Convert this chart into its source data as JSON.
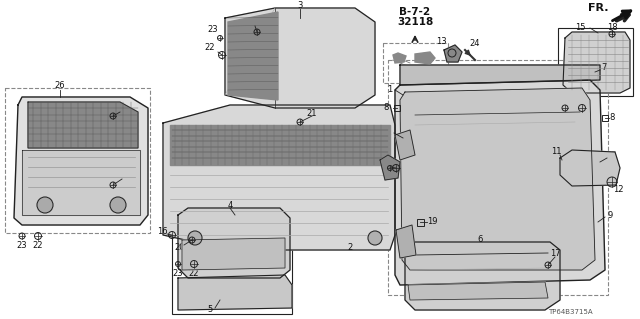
{
  "background_color": "#ffffff",
  "diagram_code": "B-7-2\n32118",
  "part_number": "TP64B3715A",
  "line_color": "#222222",
  "text_color": "#111111"
}
